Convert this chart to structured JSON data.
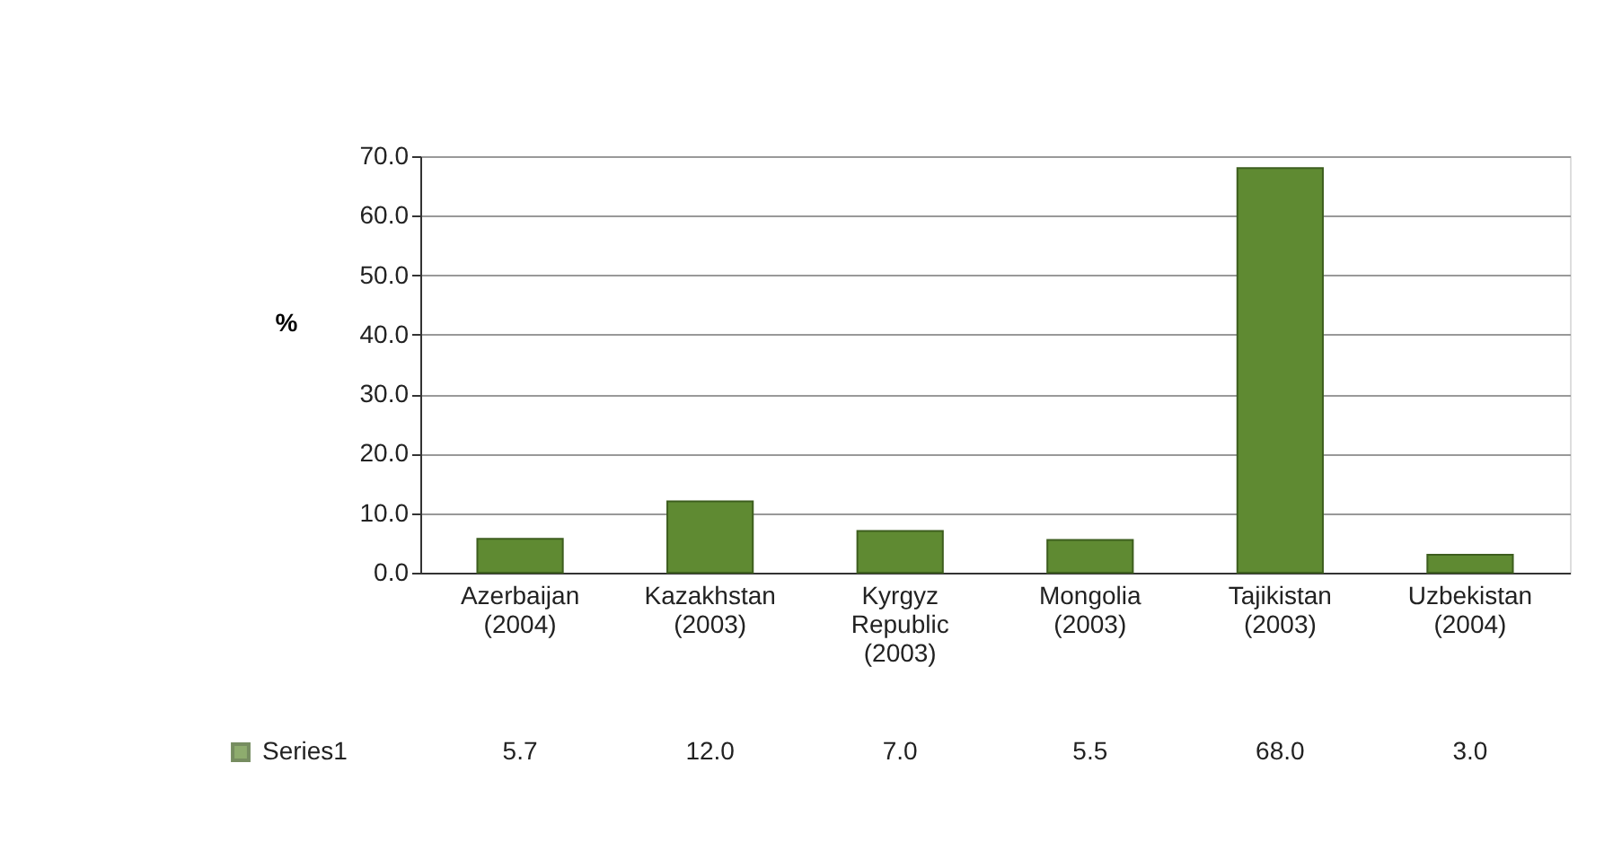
{
  "chart_data": {
    "type": "bar",
    "ylabel": "%",
    "categories": [
      "Azerbaijan (2004)",
      "Kazakhstan (2003)",
      "Kyrgyz Republic (2003)",
      "Mongolia (2003)",
      "Tajikistan (2003)",
      "Uzbekistan (2004)"
    ],
    "series": [
      {
        "name": "Series1",
        "color": "#5f8a32",
        "values": [
          5.7,
          12.0,
          7.0,
          5.5,
          68.0,
          3.0
        ],
        "value_labels": [
          "5.7",
          "12.0",
          "7.0",
          "5.5",
          "68.0",
          "3.0"
        ]
      }
    ],
    "ylim": [
      0,
      70
    ],
    "yticks": [
      {
        "value": 0,
        "label": "0.0"
      },
      {
        "value": 10,
        "label": "10.0"
      },
      {
        "value": 20,
        "label": "20.0"
      },
      {
        "value": 30,
        "label": "30.0"
      },
      {
        "value": 40,
        "label": "40.0"
      },
      {
        "value": 50,
        "label": "50.0"
      },
      {
        "value": 60,
        "label": "60.0"
      },
      {
        "value": 70,
        "label": "70.0"
      }
    ],
    "grid": "y",
    "legend": "bottom"
  }
}
